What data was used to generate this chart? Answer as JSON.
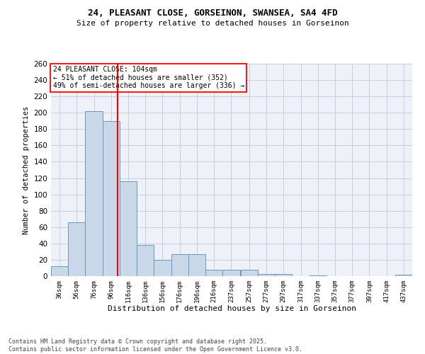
{
  "title_line1": "24, PLEASANT CLOSE, GORSEINON, SWANSEA, SA4 4FD",
  "title_line2": "Size of property relative to detached houses in Gorseinon",
  "xlabel": "Distribution of detached houses by size in Gorseinon",
  "ylabel": "Number of detached properties",
  "bar_color": "#c8d8e8",
  "bar_edge_color": "#6699bb",
  "bg_color": "#eef2f8",
  "grid_color": "#ccccdd",
  "annotation_text": "24 PLEASANT CLOSE: 104sqm\n← 51% of detached houses are smaller (352)\n49% of semi-detached houses are larger (336) →",
  "vline_x": 104,
  "vline_color": "red",
  "categories": [
    "36sqm",
    "56sqm",
    "76sqm",
    "96sqm",
    "116sqm",
    "136sqm",
    "156sqm",
    "176sqm",
    "196sqm",
    "216sqm",
    "237sqm",
    "257sqm",
    "277sqm",
    "297sqm",
    "317sqm",
    "337sqm",
    "357sqm",
    "377sqm",
    "397sqm",
    "417sqm",
    "437sqm"
  ],
  "bin_edges": [
    26,
    46,
    66,
    86,
    106,
    126,
    146,
    166,
    186,
    206,
    226,
    247,
    267,
    287,
    307,
    327,
    347,
    367,
    387,
    407,
    427,
    447
  ],
  "values": [
    12,
    66,
    202,
    190,
    116,
    38,
    20,
    27,
    27,
    8,
    8,
    8,
    3,
    3,
    0,
    1,
    0,
    0,
    0,
    0,
    2
  ],
  "ylim": [
    0,
    260
  ],
  "yticks": [
    0,
    20,
    40,
    60,
    80,
    100,
    120,
    140,
    160,
    180,
    200,
    220,
    240,
    260
  ],
  "footnote": "Contains HM Land Registry data © Crown copyright and database right 2025.\nContains public sector information licensed under the Open Government Licence v3.0."
}
